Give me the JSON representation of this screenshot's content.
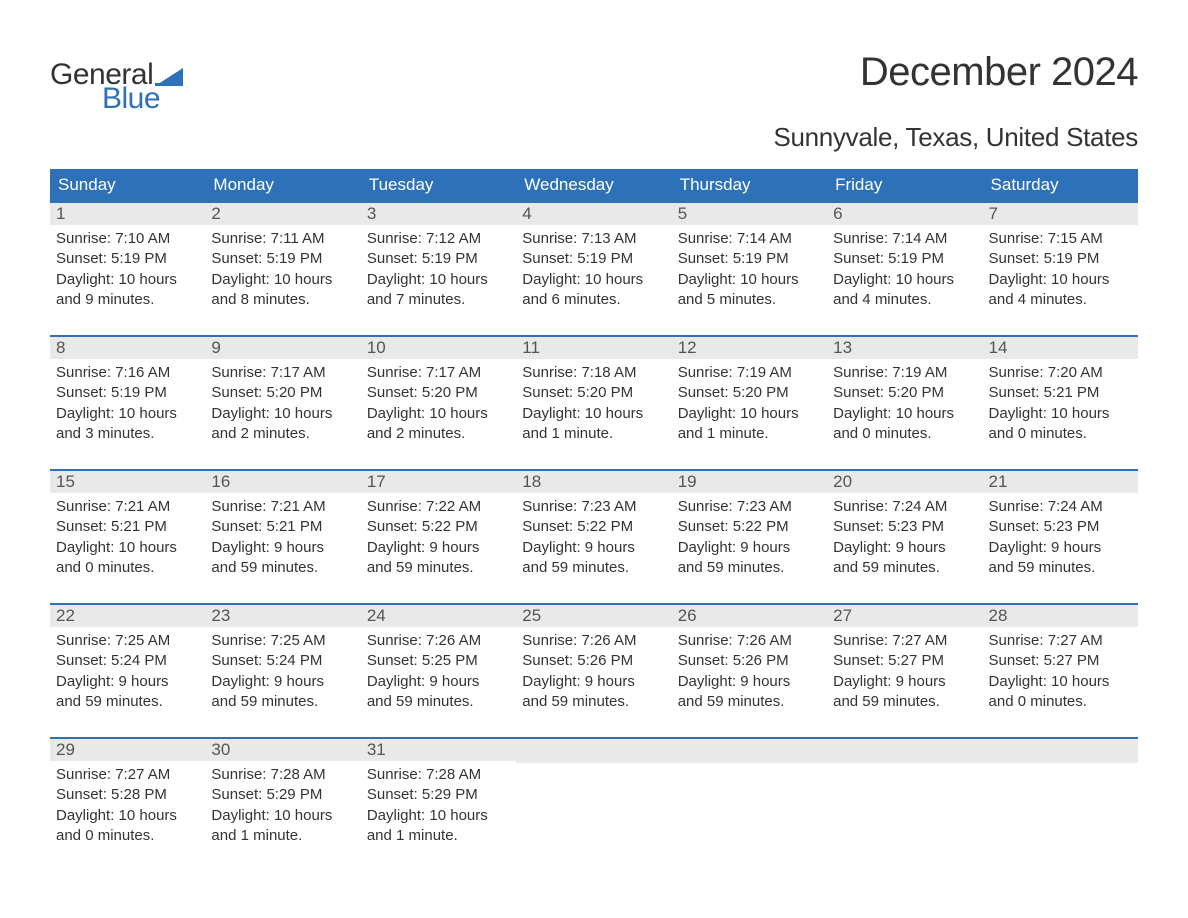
{
  "logo": {
    "word1": "General",
    "word2": "Blue",
    "flag_color": "#2d71b8"
  },
  "title": "December 2024",
  "subtitle": "Sunnyvale, Texas, United States",
  "colors": {
    "header_bg": "#2d71b8",
    "header_text": "#ffffff",
    "daynum_bg": "#e9e9e9",
    "week_border": "#2d71b8",
    "body_text": "#333333",
    "background": "#ffffff"
  },
  "weekdays": [
    "Sunday",
    "Monday",
    "Tuesday",
    "Wednesday",
    "Thursday",
    "Friday",
    "Saturday"
  ],
  "weeks": [
    [
      {
        "n": "1",
        "sunrise": "Sunrise: 7:10 AM",
        "sunset": "Sunset: 5:19 PM",
        "day1": "Daylight: 10 hours",
        "day2": "and 9 minutes."
      },
      {
        "n": "2",
        "sunrise": "Sunrise: 7:11 AM",
        "sunset": "Sunset: 5:19 PM",
        "day1": "Daylight: 10 hours",
        "day2": "and 8 minutes."
      },
      {
        "n": "3",
        "sunrise": "Sunrise: 7:12 AM",
        "sunset": "Sunset: 5:19 PM",
        "day1": "Daylight: 10 hours",
        "day2": "and 7 minutes."
      },
      {
        "n": "4",
        "sunrise": "Sunrise: 7:13 AM",
        "sunset": "Sunset: 5:19 PM",
        "day1": "Daylight: 10 hours",
        "day2": "and 6 minutes."
      },
      {
        "n": "5",
        "sunrise": "Sunrise: 7:14 AM",
        "sunset": "Sunset: 5:19 PM",
        "day1": "Daylight: 10 hours",
        "day2": "and 5 minutes."
      },
      {
        "n": "6",
        "sunrise": "Sunrise: 7:14 AM",
        "sunset": "Sunset: 5:19 PM",
        "day1": "Daylight: 10 hours",
        "day2": "and 4 minutes."
      },
      {
        "n": "7",
        "sunrise": "Sunrise: 7:15 AM",
        "sunset": "Sunset: 5:19 PM",
        "day1": "Daylight: 10 hours",
        "day2": "and 4 minutes."
      }
    ],
    [
      {
        "n": "8",
        "sunrise": "Sunrise: 7:16 AM",
        "sunset": "Sunset: 5:19 PM",
        "day1": "Daylight: 10 hours",
        "day2": "and 3 minutes."
      },
      {
        "n": "9",
        "sunrise": "Sunrise: 7:17 AM",
        "sunset": "Sunset: 5:20 PM",
        "day1": "Daylight: 10 hours",
        "day2": "and 2 minutes."
      },
      {
        "n": "10",
        "sunrise": "Sunrise: 7:17 AM",
        "sunset": "Sunset: 5:20 PM",
        "day1": "Daylight: 10 hours",
        "day2": "and 2 minutes."
      },
      {
        "n": "11",
        "sunrise": "Sunrise: 7:18 AM",
        "sunset": "Sunset: 5:20 PM",
        "day1": "Daylight: 10 hours",
        "day2": "and 1 minute."
      },
      {
        "n": "12",
        "sunrise": "Sunrise: 7:19 AM",
        "sunset": "Sunset: 5:20 PM",
        "day1": "Daylight: 10 hours",
        "day2": "and 1 minute."
      },
      {
        "n": "13",
        "sunrise": "Sunrise: 7:19 AM",
        "sunset": "Sunset: 5:20 PM",
        "day1": "Daylight: 10 hours",
        "day2": "and 0 minutes."
      },
      {
        "n": "14",
        "sunrise": "Sunrise: 7:20 AM",
        "sunset": "Sunset: 5:21 PM",
        "day1": "Daylight: 10 hours",
        "day2": "and 0 minutes."
      }
    ],
    [
      {
        "n": "15",
        "sunrise": "Sunrise: 7:21 AM",
        "sunset": "Sunset: 5:21 PM",
        "day1": "Daylight: 10 hours",
        "day2": "and 0 minutes."
      },
      {
        "n": "16",
        "sunrise": "Sunrise: 7:21 AM",
        "sunset": "Sunset: 5:21 PM",
        "day1": "Daylight: 9 hours",
        "day2": "and 59 minutes."
      },
      {
        "n": "17",
        "sunrise": "Sunrise: 7:22 AM",
        "sunset": "Sunset: 5:22 PM",
        "day1": "Daylight: 9 hours",
        "day2": "and 59 minutes."
      },
      {
        "n": "18",
        "sunrise": "Sunrise: 7:23 AM",
        "sunset": "Sunset: 5:22 PM",
        "day1": "Daylight: 9 hours",
        "day2": "and 59 minutes."
      },
      {
        "n": "19",
        "sunrise": "Sunrise: 7:23 AM",
        "sunset": "Sunset: 5:22 PM",
        "day1": "Daylight: 9 hours",
        "day2": "and 59 minutes."
      },
      {
        "n": "20",
        "sunrise": "Sunrise: 7:24 AM",
        "sunset": "Sunset: 5:23 PM",
        "day1": "Daylight: 9 hours",
        "day2": "and 59 minutes."
      },
      {
        "n": "21",
        "sunrise": "Sunrise: 7:24 AM",
        "sunset": "Sunset: 5:23 PM",
        "day1": "Daylight: 9 hours",
        "day2": "and 59 minutes."
      }
    ],
    [
      {
        "n": "22",
        "sunrise": "Sunrise: 7:25 AM",
        "sunset": "Sunset: 5:24 PM",
        "day1": "Daylight: 9 hours",
        "day2": "and 59 minutes."
      },
      {
        "n": "23",
        "sunrise": "Sunrise: 7:25 AM",
        "sunset": "Sunset: 5:24 PM",
        "day1": "Daylight: 9 hours",
        "day2": "and 59 minutes."
      },
      {
        "n": "24",
        "sunrise": "Sunrise: 7:26 AM",
        "sunset": "Sunset: 5:25 PM",
        "day1": "Daylight: 9 hours",
        "day2": "and 59 minutes."
      },
      {
        "n": "25",
        "sunrise": "Sunrise: 7:26 AM",
        "sunset": "Sunset: 5:26 PM",
        "day1": "Daylight: 9 hours",
        "day2": "and 59 minutes."
      },
      {
        "n": "26",
        "sunrise": "Sunrise: 7:26 AM",
        "sunset": "Sunset: 5:26 PM",
        "day1": "Daylight: 9 hours",
        "day2": "and 59 minutes."
      },
      {
        "n": "27",
        "sunrise": "Sunrise: 7:27 AM",
        "sunset": "Sunset: 5:27 PM",
        "day1": "Daylight: 9 hours",
        "day2": "and 59 minutes."
      },
      {
        "n": "28",
        "sunrise": "Sunrise: 7:27 AM",
        "sunset": "Sunset: 5:27 PM",
        "day1": "Daylight: 10 hours",
        "day2": "and 0 minutes."
      }
    ],
    [
      {
        "n": "29",
        "sunrise": "Sunrise: 7:27 AM",
        "sunset": "Sunset: 5:28 PM",
        "day1": "Daylight: 10 hours",
        "day2": "and 0 minutes."
      },
      {
        "n": "30",
        "sunrise": "Sunrise: 7:28 AM",
        "sunset": "Sunset: 5:29 PM",
        "day1": "Daylight: 10 hours",
        "day2": "and 1 minute."
      },
      {
        "n": "31",
        "sunrise": "Sunrise: 7:28 AM",
        "sunset": "Sunset: 5:29 PM",
        "day1": "Daylight: 10 hours",
        "day2": "and 1 minute."
      },
      null,
      null,
      null,
      null
    ]
  ]
}
